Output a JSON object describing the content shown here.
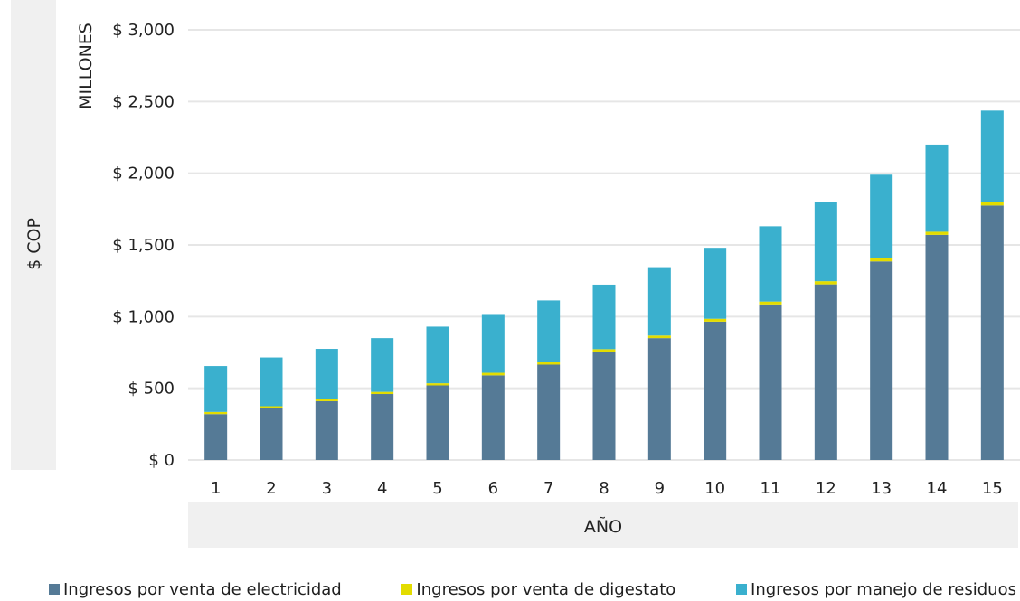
{
  "chart_data": {
    "type": "bar",
    "stacked": true,
    "categories": [
      "1",
      "2",
      "3",
      "4",
      "5",
      "6",
      "7",
      "8",
      "9",
      "10",
      "11",
      "12",
      "13",
      "14",
      "15"
    ],
    "ylim": [
      0,
      3000
    ],
    "yticks": [
      0,
      500,
      1000,
      1500,
      2000,
      2500,
      3000
    ],
    "ytick_labels": [
      "$ 0",
      "$ 500",
      "$ 1,000",
      "$ 1,500",
      "$ 2,000",
      "$ 2,500",
      "$ 3,000"
    ],
    "ylabel": "$ COP",
    "yunit": "MILLONES",
    "xlabel": "AÑO",
    "grid": true,
    "legend_position": "bottom",
    "series": [
      {
        "name": "Ingresos por venta de electricidad",
        "color": "#557a96",
        "values": [
          320,
          360,
          410,
          460,
          520,
          590,
          665,
          755,
          850,
          965,
          1085,
          1225,
          1385,
          1570,
          1775
        ]
      },
      {
        "name": "Ingresos por venta de digestato",
        "color": "#e3dc00",
        "values": [
          15,
          15,
          15,
          15,
          15,
          18,
          18,
          18,
          18,
          20,
          20,
          22,
          22,
          22,
          22
        ]
      },
      {
        "name": "Ingresos por manejo de residuos",
        "color": "#3ab0ce",
        "values": [
          320,
          340,
          350,
          375,
          395,
          410,
          430,
          450,
          477,
          495,
          525,
          553,
          583,
          608,
          640
        ]
      }
    ]
  }
}
